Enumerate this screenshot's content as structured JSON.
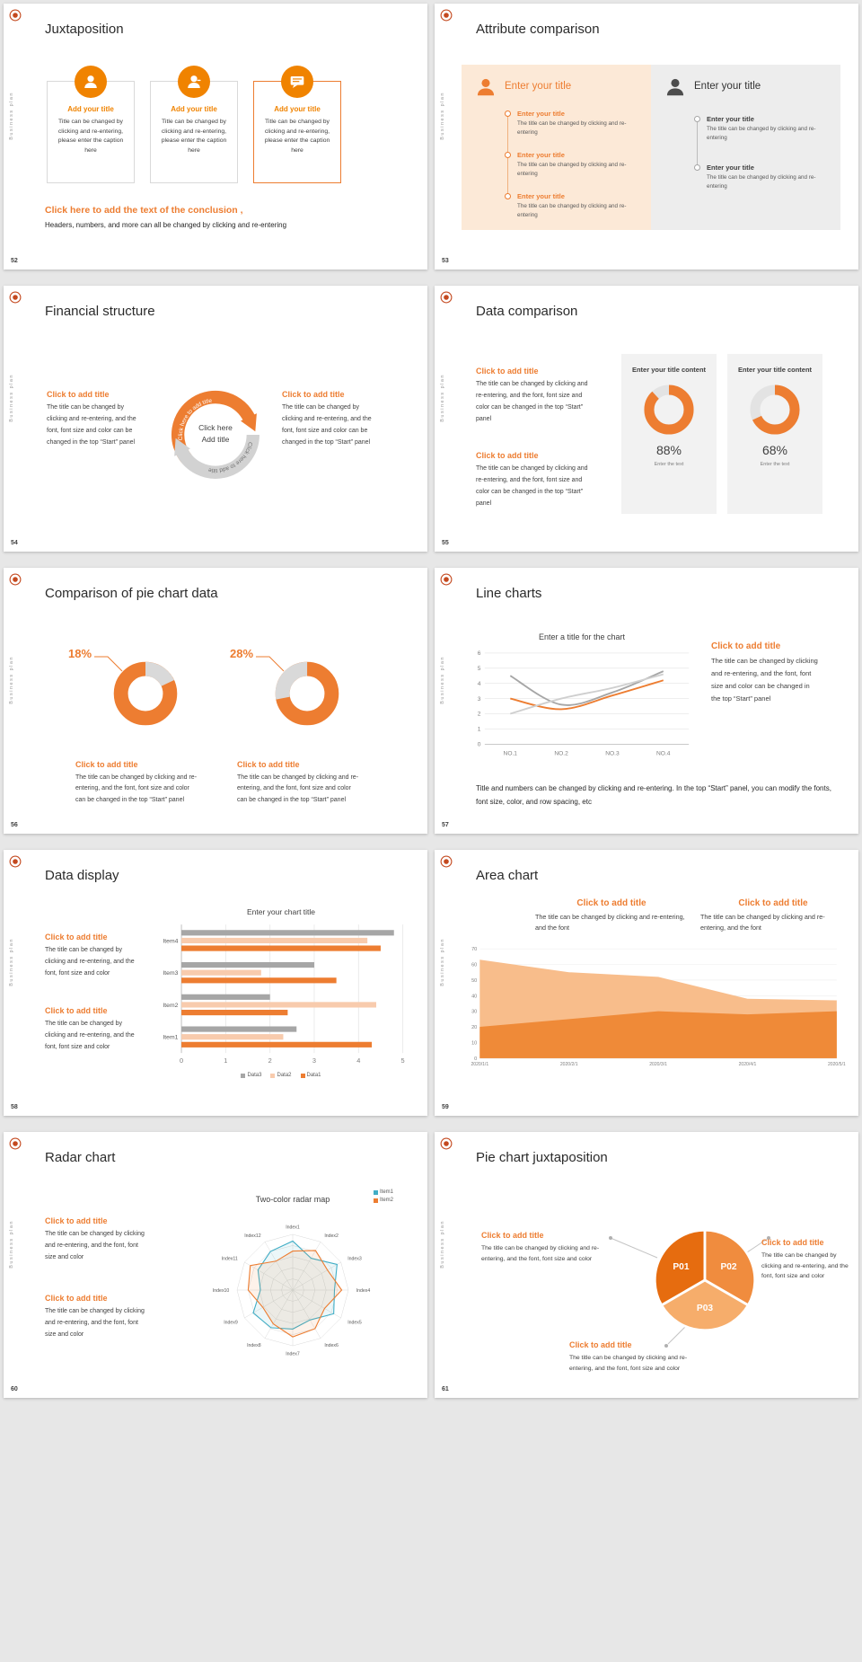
{
  "common": {
    "vertical_label": "Business plan",
    "click_title": "Click to add title",
    "enter_title": "Enter your title",
    "body_full": "The title can be changed by clicking and re-entering, and the font, font size and color can be changed in the top “Start” panel",
    "body_short": "The title can be changed by clicking and re-entering, and the font, font size and color",
    "body_font": "The title can be changed by clicking and re-entering, and the font",
    "body_mini": "The title can be changed by clicking and re-entering",
    "accent_color": "#ed7d31"
  },
  "s52": {
    "number": "52",
    "title": "Juxtaposition",
    "cards": [
      {
        "title": "Add your title",
        "body": "Title can be changed by clicking and re-entering, please enter the caption here"
      },
      {
        "title": "Add your title",
        "body": "Title can be changed by clicking and re-entering, please enter the caption here"
      },
      {
        "title": "Add your title",
        "body": "Title can be changed by clicking and re-entering, please enter the caption here"
      }
    ],
    "conclusion_title": "Click here to add the text of the conclusion ,",
    "conclusion_body": "Headers, numbers, and more can all be changed by clicking and re-entering"
  },
  "s53": {
    "number": "53",
    "title": "Attribute comparison",
    "left": {
      "heading": "Enter your title",
      "items": [
        {
          "title": "Enter your title",
          "body": "The title can be changed by clicking and re-entering"
        },
        {
          "title": "Enter your title",
          "body": "The title can be changed by clicking and re-entering"
        },
        {
          "title": "Enter your title",
          "body": "The title can be changed by clicking and re-entering"
        }
      ]
    },
    "right": {
      "heading": "Enter your title",
      "items": [
        {
          "title": "Enter your title",
          "body": "The title can be changed by clicking and re-entering"
        },
        {
          "title": "Enter your title",
          "body": "The title can be changed by clicking and re-entering"
        }
      ]
    }
  },
  "s54": {
    "number": "54",
    "title": "Financial structure",
    "center_line1": "Click here",
    "center_line2": "Add title",
    "arc_text": "Click here to add title"
  },
  "s55": {
    "number": "55",
    "title": "Data comparison",
    "panels": [
      {
        "heading": "Enter your title content",
        "percent_label": "88%",
        "caption": "Enter the text"
      },
      {
        "heading": "Enter your title content",
        "percent_label": "68%",
        "caption": "Enter the text"
      }
    ],
    "chart_data": [
      {
        "type": "donut",
        "percent": 88,
        "segment_color": "#ed7d31",
        "track_color": "#e3e3e3",
        "rotate": -90,
        "thickness": 9.5
      },
      {
        "type": "donut",
        "percent": 68,
        "segment_color": "#ed7d31",
        "track_color": "#e3e3e3",
        "rotate": -90,
        "thickness": 9.5
      }
    ]
  },
  "s56": {
    "number": "56",
    "title": "Comparison of pie chart data",
    "groups": [
      {
        "percent_label": "18%"
      },
      {
        "percent_label": "28%"
      }
    ],
    "chart_data": [
      {
        "type": "donut",
        "percent": 18,
        "segment_color": "#d9d9d9",
        "track_color": "#ed7d31",
        "rotate": -90,
        "thickness": 11
      },
      {
        "type": "donut",
        "percent": 28,
        "segment_color": "#d9d9d9",
        "track_color": "#ed7d31",
        "rotate": -190.8,
        "thickness": 11
      }
    ]
  },
  "s57": {
    "number": "57",
    "title": "Line charts",
    "footer": "Title and numbers can be changed by clicking and re-entering. In the top “Start” panel, you can modify the fonts, font size, color, and row spacing, etc",
    "chart_data": {
      "type": "line",
      "title": "Enter a title for the chart",
      "x": [
        "NO.1",
        "NO.2",
        "NO.3",
        "NO.4"
      ],
      "ymin": 0,
      "ymax": 6,
      "ystep": 1,
      "series": [
        {
          "color": "#a6a6a6",
          "values": [
            4.5,
            2.6,
            3.4,
            4.8
          ]
        },
        {
          "color": "#ed7d31",
          "values": [
            3.0,
            2.3,
            3.2,
            4.2
          ]
        },
        {
          "color": "#cfcfcf",
          "values": [
            2.0,
            3.0,
            3.7,
            4.6
          ]
        }
      ]
    }
  },
  "s58": {
    "number": "58",
    "title": "Data display",
    "chart_data": {
      "type": "barh",
      "title": "Enter your chart title",
      "categories": [
        "Item1",
        "Item2",
        "Item3",
        "Item4"
      ],
      "xmin": 0,
      "xmax": 5,
      "xstep": 1,
      "series": [
        {
          "name": "Data1",
          "color": "#ed7d31",
          "values": [
            4.3,
            2.4,
            3.5,
            4.5
          ]
        },
        {
          "name": "Data2",
          "color": "#f8cbad",
          "values": [
            2.3,
            4.4,
            1.8,
            4.2
          ]
        },
        {
          "name": "Data3",
          "color": "#a6a6a6",
          "values": [
            2.6,
            2.0,
            3.0,
            4.8
          ]
        }
      ]
    }
  },
  "s59": {
    "number": "59",
    "title": "Area chart",
    "chart_data": {
      "type": "area",
      "x": [
        "2020/1/1",
        "2020/2/1",
        "2020/3/1",
        "2020/4/1",
        "2020/5/1"
      ],
      "ymin": 0,
      "ymax": 70,
      "ystep": 10,
      "series": [
        {
          "color": "#f8bd8b",
          "values": [
            63,
            55,
            52,
            38,
            37
          ]
        },
        {
          "color": "#ef8a38",
          "values": [
            20,
            25,
            30,
            28,
            30
          ]
        }
      ]
    }
  },
  "s60": {
    "number": "60",
    "title": "Radar chart",
    "chart_data": {
      "type": "radar",
      "title": "Two-color radar map",
      "axes": [
        "Index1",
        "Index2",
        "Index3",
        "Index4",
        "Index5",
        "Index6",
        "Index7",
        "Index8",
        "Index9",
        "Index10",
        "Index11",
        "Index12"
      ],
      "rings": 5,
      "series": [
        {
          "name": "Item1",
          "color": "#41aec6",
          "values": [
            0.88,
            0.66,
            0.92,
            0.75,
            0.85,
            0.62,
            0.7,
            0.78,
            0.82,
            0.58,
            0.72,
            0.8
          ]
        },
        {
          "name": "Item2",
          "color": "#ed7d31",
          "values": [
            0.7,
            0.82,
            0.72,
            0.88,
            0.66,
            0.8,
            0.84,
            0.7,
            0.62,
            0.8,
            0.88,
            0.6
          ]
        }
      ]
    }
  },
  "s61": {
    "number": "61",
    "title": "Pie chart juxtaposition",
    "chart_data": {
      "type": "pie",
      "slices": [
        {
          "label": "P01",
          "color": "#e66c0f",
          "from": 150,
          "to": 270,
          "value": 33.3
        },
        {
          "label": "P02",
          "color": "#f08c3e",
          "from": -90,
          "to": 30,
          "value": 33.4
        },
        {
          "label": "P03",
          "color": "#f6ad6b",
          "from": 30,
          "to": 150,
          "value": 33.3
        }
      ]
    }
  }
}
